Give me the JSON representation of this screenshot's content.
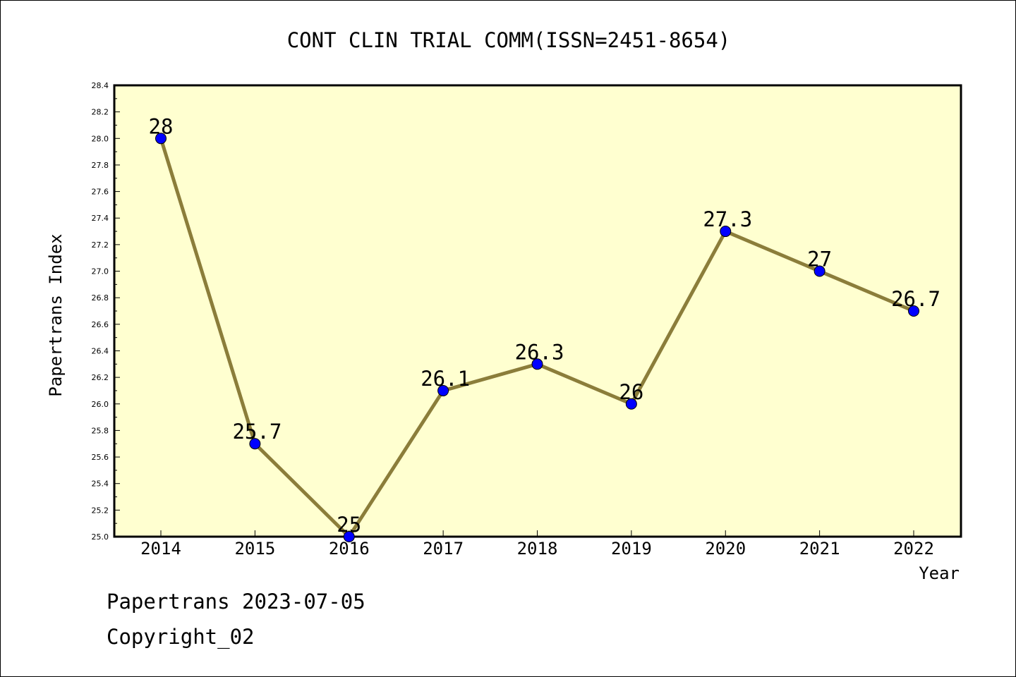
{
  "chart_data": {
    "type": "line",
    "title": "CONT CLIN TRIAL COMM(ISSN=2451-8654)",
    "xlabel": "Year",
    "ylabel": "Papertrans Index",
    "categories": [
      "2014",
      "2015",
      "2016",
      "2017",
      "2018",
      "2019",
      "2020",
      "2021",
      "2022"
    ],
    "series": [
      {
        "values": [
          28,
          25.7,
          25,
          26.1,
          26.3,
          26,
          27.3,
          27,
          26.7
        ],
        "labels": [
          "28",
          "25.7",
          "25",
          "26.1",
          "26.3",
          "26",
          "27.3",
          "27",
          "26.7"
        ]
      }
    ],
    "ylim": [
      25.0,
      28.4
    ],
    "yticks": [
      "25.0",
      "25.2",
      "25.4",
      "25.6",
      "25.8",
      "26.0",
      "26.2",
      "26.4",
      "26.6",
      "26.8",
      "27.0",
      "27.2",
      "27.4",
      "27.6",
      "27.8",
      "28.0",
      "28.2",
      "28.4"
    ],
    "grid": false,
    "colors": {
      "plot_background": "#ffffd0",
      "line": "#8b7d3a",
      "marker": "#0000ff"
    }
  },
  "footer": {
    "date_line": "Papertrans 2023-07-05",
    "copyright": "Copyright_02"
  }
}
